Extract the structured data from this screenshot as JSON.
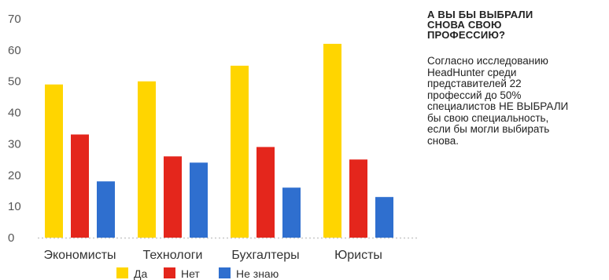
{
  "chart_data": {
    "type": "bar",
    "categories": [
      "Экономисты",
      "Технологи",
      "Бухгалтеры",
      "Юристы"
    ],
    "series": [
      {
        "name": "Да",
        "color": "#ffd500",
        "values": [
          49,
          50,
          55,
          62
        ]
      },
      {
        "name": "Нет",
        "color": "#e4261c",
        "values": [
          33,
          26,
          29,
          25
        ]
      },
      {
        "name": "Не знаю",
        "color": "#2f6fcf",
        "values": [
          18,
          24,
          16,
          13
        ]
      }
    ],
    "yticks": [
      0,
      10,
      20,
      30,
      40,
      50,
      60,
      70
    ],
    "ylim": [
      0,
      70
    ],
    "grid": false,
    "legend": "bottom"
  },
  "side": {
    "title": "А ВЫ БЫ ВЫБРАЛИ\nСНОВА СВОЮ\nПРОФЕССИЮ?",
    "text": "Согласно исследованию\nHeadHunter среди\nпредставителей 22\nпрофессий до 50%\nспециалистов НЕ ВЫБРАЛИ\nбы свою специальность,\nесли бы могли выбирать\nснова."
  }
}
